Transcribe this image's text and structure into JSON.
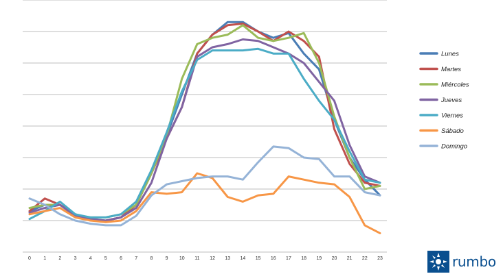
{
  "chart_data": {
    "type": "line",
    "title": "",
    "xlabel": "",
    "ylabel": "",
    "x": [
      0,
      1,
      2,
      3,
      4,
      5,
      6,
      7,
      8,
      9,
      10,
      11,
      12,
      13,
      14,
      15,
      16,
      17,
      18,
      19,
      20,
      21,
      22,
      23
    ],
    "ylim": [
      0,
      8
    ],
    "y_gridlines": 8,
    "y_tick_labels_visible": false,
    "grid": true,
    "legend_position": "right",
    "series": [
      {
        "name": "Lunes",
        "color": "#4a7db5",
        "values": [
          1.3,
          1.5,
          1.5,
          1.2,
          1.05,
          1.0,
          1.1,
          1.5,
          2.5,
          3.7,
          5.0,
          6.3,
          6.9,
          7.3,
          7.3,
          7.0,
          6.8,
          6.95,
          6.3,
          5.8,
          4.2,
          3.0,
          2.3,
          1.8
        ]
      },
      {
        "name": "Martes",
        "color": "#c0504d",
        "values": [
          1.3,
          1.7,
          1.5,
          1.2,
          1.0,
          1.0,
          1.1,
          1.5,
          2.5,
          3.6,
          4.6,
          6.3,
          6.9,
          7.2,
          7.25,
          7.0,
          6.7,
          7.0,
          6.7,
          6.2,
          3.9,
          2.8,
          2.2,
          2.1
        ]
      },
      {
        "name": "Miércoles",
        "color": "#9bbb59",
        "values": [
          1.4,
          1.5,
          1.5,
          1.15,
          1.1,
          1.1,
          1.2,
          1.5,
          2.5,
          3.7,
          5.5,
          6.6,
          6.8,
          6.9,
          7.2,
          6.8,
          6.7,
          6.8,
          6.95,
          6.0,
          4.3,
          3.0,
          2.0,
          2.1
        ]
      },
      {
        "name": "Jueves",
        "color": "#8064a2",
        "values": [
          1.25,
          1.4,
          1.5,
          1.15,
          1.05,
          1.0,
          1.1,
          1.4,
          2.2,
          3.6,
          4.6,
          6.2,
          6.5,
          6.6,
          6.75,
          6.7,
          6.5,
          6.3,
          6.0,
          5.4,
          4.8,
          3.4,
          2.4,
          2.2
        ]
      },
      {
        "name": "Viernes",
        "color": "#4bacc6",
        "values": [
          1.05,
          1.3,
          1.6,
          1.2,
          1.1,
          1.1,
          1.2,
          1.6,
          2.6,
          3.8,
          5.1,
          6.1,
          6.4,
          6.4,
          6.4,
          6.45,
          6.3,
          6.3,
          5.5,
          4.8,
          4.2,
          3.2,
          2.3,
          2.2
        ]
      },
      {
        "name": "Sábado",
        "color": "#f79646",
        "values": [
          1.2,
          1.3,
          1.4,
          1.1,
          1.0,
          0.95,
          1.0,
          1.3,
          1.9,
          1.85,
          1.9,
          2.5,
          2.35,
          1.75,
          1.6,
          1.8,
          1.85,
          2.4,
          2.3,
          2.2,
          2.15,
          1.75,
          0.85,
          0.6
        ]
      },
      {
        "name": "Domingo",
        "color": "#95b3d7",
        "values": [
          1.7,
          1.5,
          1.2,
          1.0,
          0.9,
          0.85,
          0.85,
          1.15,
          1.8,
          2.15,
          2.25,
          2.35,
          2.4,
          2.4,
          2.3,
          2.85,
          3.35,
          3.3,
          3.0,
          2.95,
          2.4,
          2.4,
          1.9,
          1.8
        ]
      }
    ]
  },
  "brand": {
    "name": "rumbo",
    "logo_icon": "sun-icon",
    "color": "#0a4f8f"
  }
}
